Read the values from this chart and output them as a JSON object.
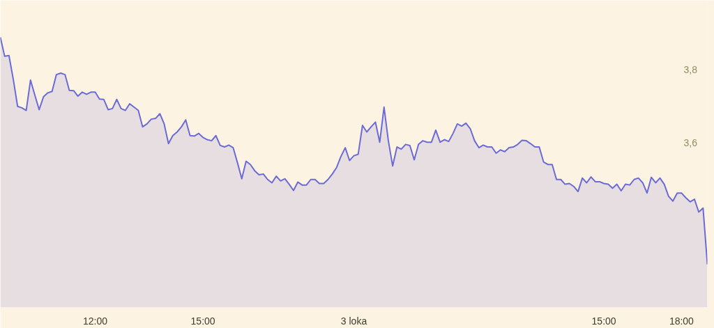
{
  "chart_data": {
    "type": "area",
    "categories": [
      null,
      null,
      null,
      null,
      null,
      null,
      null,
      null,
      null,
      null,
      null,
      null,
      null,
      null,
      null,
      null,
      null,
      null,
      null,
      null,
      null,
      null,
      "12:00",
      null,
      null,
      null,
      null,
      null,
      null,
      null,
      null,
      null,
      null,
      null,
      null,
      null,
      null,
      null,
      null,
      null,
      null,
      null,
      null,
      null,
      null,
      null,
      null,
      "15:00",
      null,
      null,
      null,
      null,
      null,
      null,
      null,
      null,
      null,
      null,
      null,
      null,
      null,
      null,
      null,
      null,
      null,
      null,
      null,
      null,
      null,
      null,
      null,
      null,
      null,
      null,
      null,
      null,
      null,
      null,
      null,
      null,
      null,
      null,
      "3 loka",
      null,
      null,
      null,
      null,
      null,
      null,
      null,
      null,
      null,
      null,
      null,
      null,
      null,
      null,
      null,
      null,
      null,
      null,
      null,
      null,
      null,
      null,
      null,
      null,
      null,
      null,
      null,
      null,
      null,
      null,
      null,
      null,
      null,
      null,
      null,
      null,
      null,
      null,
      null,
      null,
      null,
      null,
      null,
      null,
      null,
      null,
      null,
      null,
      null,
      null,
      null,
      null,
      null,
      null,
      null,
      null,
      null,
      "15:00",
      null,
      null,
      null,
      null,
      null,
      null,
      null,
      null,
      null,
      null,
      null,
      null,
      null,
      null,
      null,
      null,
      null,
      "18:00",
      null,
      null,
      null,
      null,
      null,
      null
    ],
    "series": [
      {
        "color": "#6b6bd6",
        "values": [
          3.889,
          3.837,
          3.839,
          3.774,
          3.7,
          3.696,
          3.689,
          3.772,
          3.731,
          3.691,
          3.726,
          3.737,
          3.741,
          3.787,
          3.791,
          3.787,
          3.744,
          3.743,
          3.728,
          3.739,
          3.733,
          3.739,
          3.739,
          3.72,
          3.719,
          3.691,
          3.694,
          3.719,
          3.694,
          3.689,
          3.707,
          3.698,
          3.689,
          3.644,
          3.652,
          3.665,
          3.667,
          3.68,
          3.652,
          3.598,
          3.62,
          3.63,
          3.644,
          3.663,
          3.62,
          3.619,
          3.626,
          3.615,
          3.609,
          3.606,
          3.62,
          3.593,
          3.589,
          3.594,
          3.587,
          3.546,
          3.502,
          3.55,
          3.541,
          3.524,
          3.513,
          3.515,
          3.5,
          3.491,
          3.509,
          3.496,
          3.502,
          3.487,
          3.47,
          3.493,
          3.485,
          3.485,
          3.5,
          3.5,
          3.489,
          3.489,
          3.5,
          3.515,
          3.533,
          3.563,
          3.587,
          3.552,
          3.565,
          3.569,
          3.648,
          3.63,
          3.644,
          3.657,
          3.602,
          3.698,
          3.606,
          3.537,
          3.589,
          3.583,
          3.596,
          3.593,
          3.554,
          3.596,
          3.606,
          3.602,
          3.602,
          3.635,
          3.602,
          3.609,
          3.604,
          3.626,
          3.652,
          3.646,
          3.654,
          3.639,
          3.606,
          3.587,
          3.594,
          3.589,
          3.589,
          3.572,
          3.581,
          3.576,
          3.587,
          3.589,
          3.596,
          3.607,
          3.606,
          3.598,
          3.589,
          3.589,
          3.548,
          3.541,
          3.541,
          3.5,
          3.5,
          3.487,
          3.489,
          3.481,
          3.467,
          3.504,
          3.491,
          3.507,
          3.494,
          3.494,
          3.489,
          3.487,
          3.476,
          3.487,
          3.469,
          3.487,
          3.485,
          3.5,
          3.504,
          3.491,
          3.463,
          3.506,
          3.491,
          3.504,
          3.487,
          3.454,
          3.441,
          3.463,
          3.463,
          3.45,
          3.439,
          3.446,
          3.411,
          3.422,
          3.268
        ]
      }
    ],
    "ylim": [
      3.15,
      3.99
    ],
    "yticks": [
      {
        "value": 3.8,
        "label": "3,8"
      },
      {
        "value": 3.6,
        "label": "3,6"
      }
    ]
  }
}
